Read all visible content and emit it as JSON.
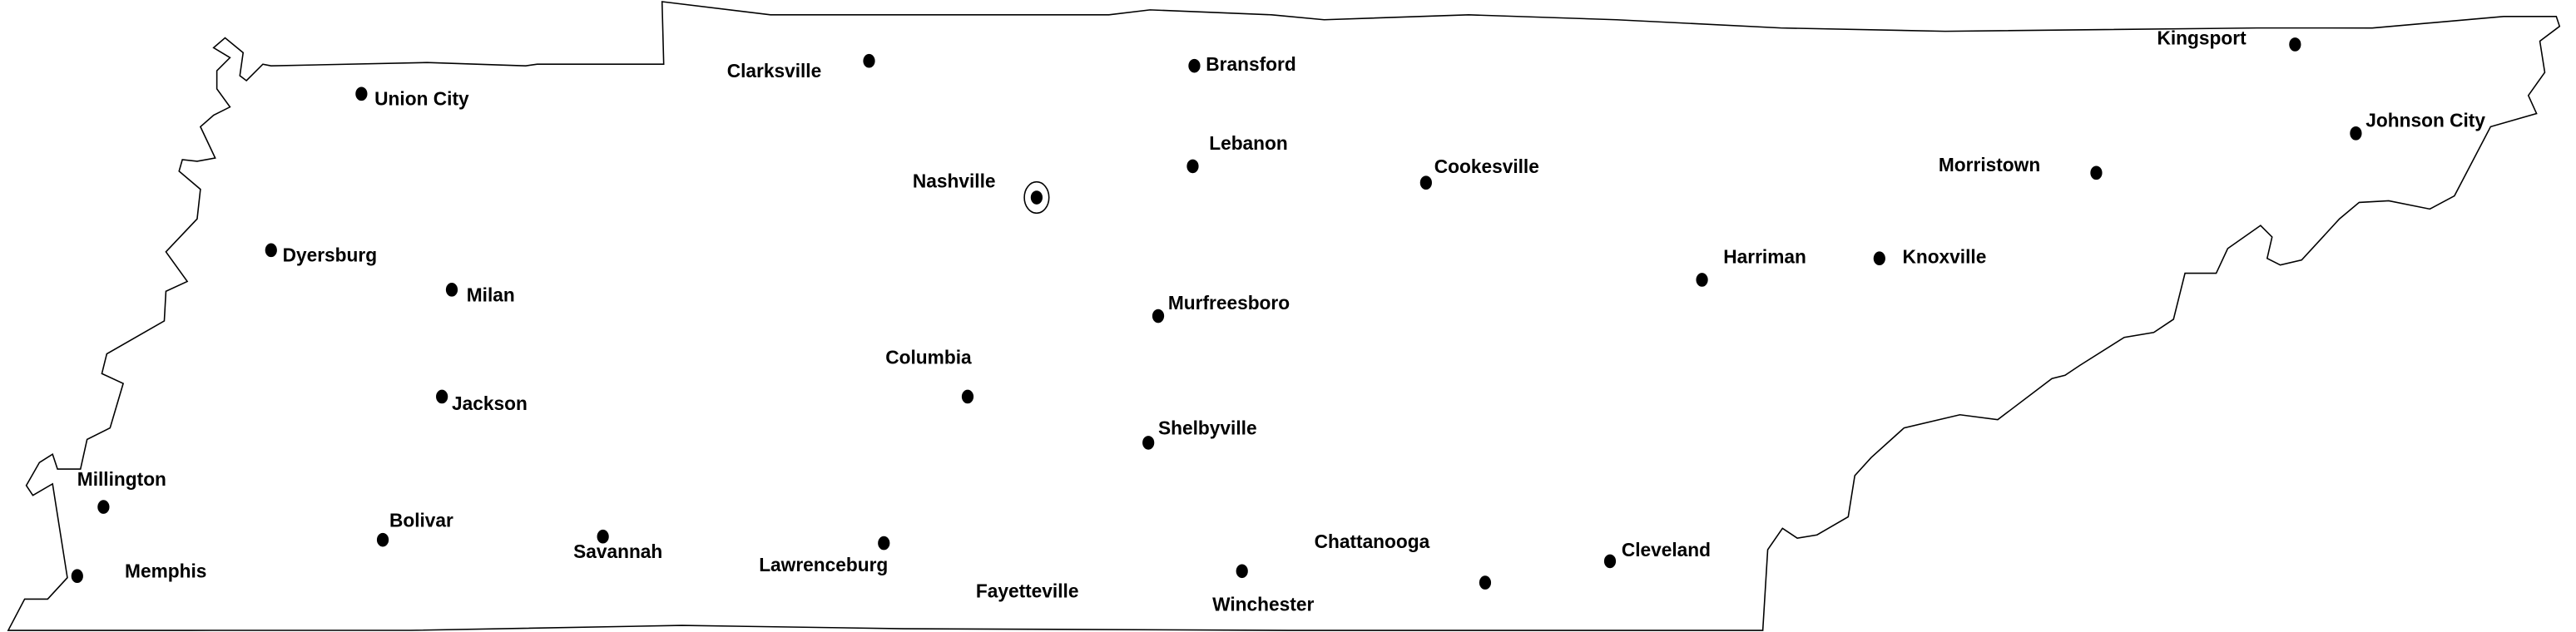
{
  "map": {
    "outline_color": "#000000",
    "background": "#ffffff",
    "capital_marker": "circled-dot",
    "cities": [
      {
        "name": "Union City"
      },
      {
        "name": "Clarksville"
      },
      {
        "name": "Bransford"
      },
      {
        "name": "Nashville",
        "capital": true
      },
      {
        "name": "Lebanon"
      },
      {
        "name": "Cookesville"
      },
      {
        "name": "Dyersburg"
      },
      {
        "name": "Milan"
      },
      {
        "name": "Murfreesboro"
      },
      {
        "name": "Columbia"
      },
      {
        "name": "Jackson"
      },
      {
        "name": "Shelbyville"
      },
      {
        "name": "Millington"
      },
      {
        "name": "Bolivar"
      },
      {
        "name": "Savannah"
      },
      {
        "name": "Lawrenceburg"
      },
      {
        "name": "Memphis"
      },
      {
        "name": "Fayetteville"
      },
      {
        "name": "Winchester"
      },
      {
        "name": "Chattanooga"
      },
      {
        "name": "Cleveland"
      },
      {
        "name": "Harriman"
      },
      {
        "name": "Knoxville"
      },
      {
        "name": "Morristown"
      },
      {
        "name": "Kingsport"
      },
      {
        "name": "Johnson City"
      }
    ]
  }
}
